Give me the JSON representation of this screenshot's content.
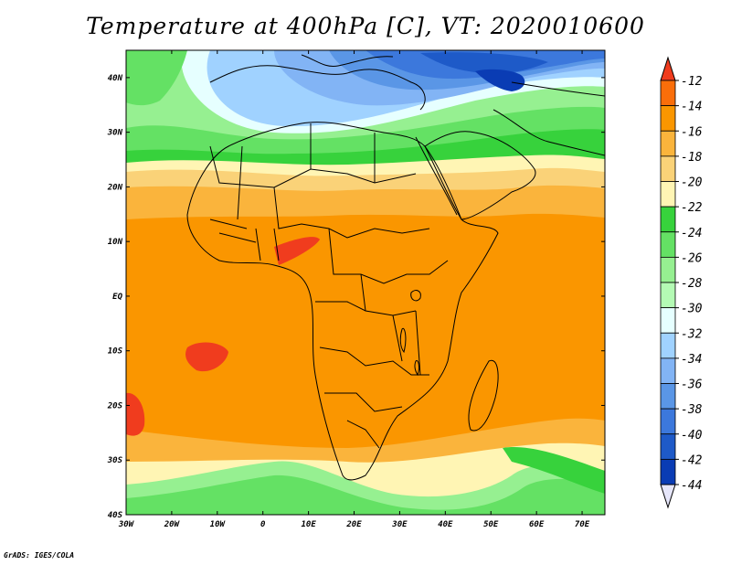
{
  "title": "Temperature at 400hPa [C], VT: 2020010600",
  "footer": "GrADS: IGES/COLA",
  "map": {
    "region": "Africa",
    "lon_range": [
      -30,
      75
    ],
    "lat_range": [
      -40,
      45
    ],
    "lon_ticks": [
      "30W",
      "20W",
      "10W",
      "0",
      "10E",
      "20E",
      "30E",
      "40E",
      "50E",
      "60E",
      "70E"
    ],
    "lat_ticks": [
      "40N",
      "30N",
      "20N",
      "10N",
      "EQ",
      "10S",
      "20S",
      "30S",
      "40S"
    ]
  },
  "colorbar": {
    "labels": [
      "-12",
      "-14",
      "-16",
      "-18",
      "-20",
      "-22",
      "-24",
      "-26",
      "-28",
      "-30",
      "-32",
      "-34",
      "-36",
      "-38",
      "-40",
      "-42",
      "-44"
    ],
    "colors": [
      "#f03c1e",
      "#fa6e0a",
      "#fa9600",
      "#fab43c",
      "#fad278",
      "#fff5b4",
      "#37d23c",
      "#64e164",
      "#96f091",
      "#b4fab4",
      "#e6ffff",
      "#a0d2ff",
      "#82b4f5",
      "#5a96e6",
      "#3c78dc",
      "#1e5ac8",
      "#0a3cb4",
      "#001e96",
      "#000a78"
    ],
    "top_arrow_color": "#f03c1e",
    "bottom_arrow_color": "#e6e6fa"
  }
}
